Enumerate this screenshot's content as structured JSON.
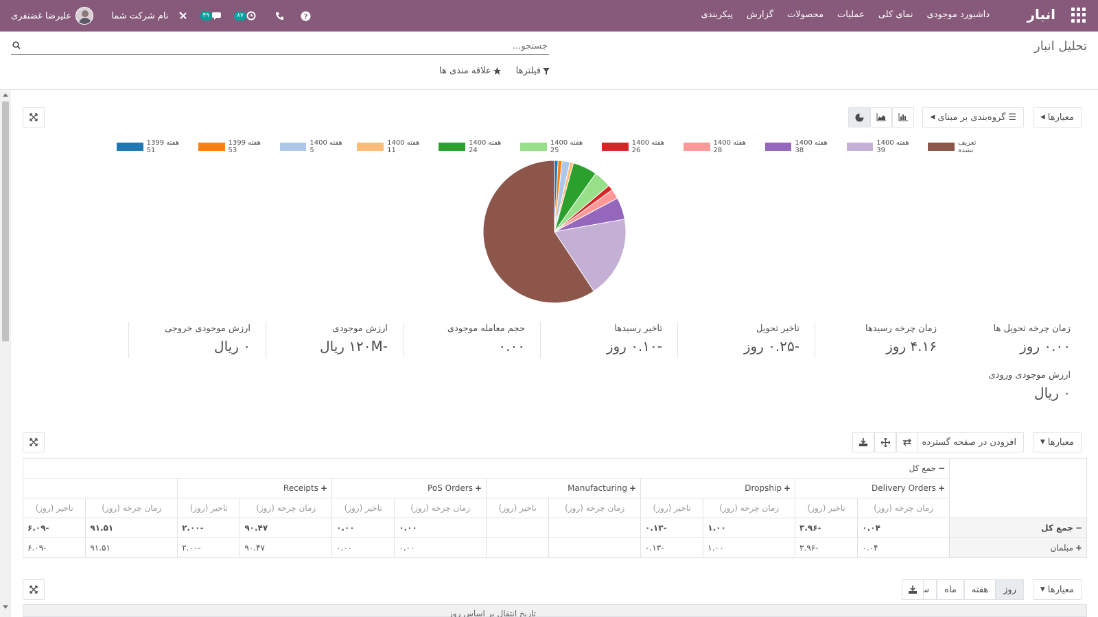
{
  "navbar": {
    "app_title": "انبار",
    "menu": [
      "داشبورد موجودی",
      "نمای کلی",
      "عملیات",
      "محصولات",
      "گزارش",
      "پیکربندی"
    ],
    "user_name": "علیرضا غضنفری",
    "company_name": "نام شرکت شما",
    "activity_count": "۸۷",
    "message_count": "۴۹",
    "accent_color": "#875a7b"
  },
  "control_panel": {
    "breadcrumb": "تحلیل انبار",
    "search_placeholder": "جستجو...",
    "filters_label": "فیلترها",
    "favorites_label": "علاقه مندی ها"
  },
  "graph_view": {
    "measures_label": "معیارها",
    "groupby_label": "گروه‌بندی بر مبنای",
    "chart_data": {
      "type": "pie",
      "categories": [
        "هفته 1399 51",
        "هفته 1399 53",
        "هفته 1400 5",
        "هفته 1400 11",
        "هفته 1400 24",
        "هفته 1400 25",
        "هفته 1400 26",
        "هفته 1400 28",
        "هفته 1400 38",
        "هفته 1400 39",
        "تعریف نشده"
      ],
      "values": [
        0.8,
        0.9,
        1.8,
        0.8,
        5.5,
        4.0,
        1.2,
        2.2,
        5.0,
        18.5,
        59.3
      ],
      "colors": [
        "#1f77b4",
        "#ff7f0e",
        "#aec7e8",
        "#ffbb78",
        "#2ca02c",
        "#98df8a",
        "#d62728",
        "#ff9896",
        "#9467bd",
        "#c5b0d5",
        "#8c564b"
      ],
      "legend": "top"
    }
  },
  "kpis": [
    {
      "label": "زمان چرخه تحویل ها",
      "value": "۰.۰۰ روز"
    },
    {
      "label": "زمان چرخه رسیدها",
      "value": "۴.۱۶ روز"
    },
    {
      "label": "تاخیر تحویل",
      "value": "-۰.۲۵ روز"
    },
    {
      "label": "تاخیر رسیدها",
      "value": "-۰.۱۰ روز"
    },
    {
      "label": "حجم معامله موجودی",
      "value": "۰.۰۰"
    },
    {
      "label": "ارزش موجودی",
      "value": "-۱۲۰M ریال"
    },
    {
      "label": "ارزش موجودی خروجی",
      "value": "۰ ریال"
    },
    {
      "label": "ارزش موجودی ورودی",
      "value": "۰ ریال"
    }
  ],
  "pivot": {
    "measures_label": "معیارها",
    "add_to_dashboard": "افزودن در صفحه گسترده",
    "total_label": "جمع کل",
    "groups": [
      "Delivery Orders",
      "Dropship",
      "Manufacturing",
      "PoS Orders",
      "Receipts"
    ],
    "measure_headers": [
      "زمان چرخه (روز)",
      "تاخیر (روز)"
    ],
    "rows": [
      {
        "label": "جمع کل",
        "sign": "−",
        "cells": [
          "۰.۰۴",
          "-۳.۹۶",
          "۱.۰۰",
          "-۰.۱۳",
          "",
          "",
          "۰.۰۰",
          "۰.۰۰",
          "۹۰.۴۷",
          "-۲.۰۰",
          "۹۱.۵۱",
          "-۶.۰۹"
        ]
      },
      {
        "label": "مبلمان",
        "sign": "+",
        "cells": [
          "۰.۰۴",
          "-۳.۹۶",
          "۱.۰۰",
          "-۰.۱۳",
          "",
          "",
          "۰.۰۰",
          "۰.۰۰",
          "۹۰.۴۷",
          "-۲.۰۰",
          "۹۱.۵۱",
          "-۶.۰۹"
        ]
      }
    ]
  },
  "cohort": {
    "measures_label": "معیارها",
    "periods": [
      "روز",
      "هفته",
      "ماه",
      "سال"
    ],
    "active_period": "روز",
    "header_text": "تاریخ انتقال بر اساس روز"
  }
}
